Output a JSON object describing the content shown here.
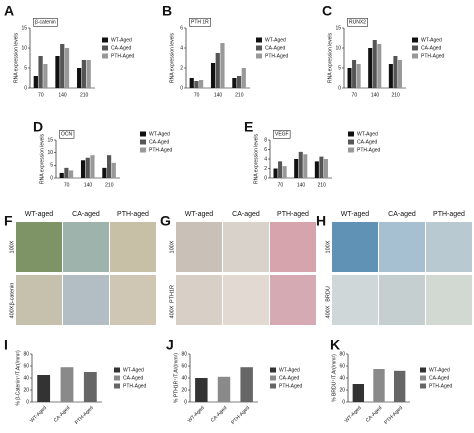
{
  "chart_data": [
    {
      "type": "grouped-bar",
      "panel": "A",
      "title": "β-catenin",
      "y_label": "RNA expression levels",
      "categories": [
        "70",
        "140",
        "210"
      ],
      "series": [
        {
          "name": "WT-Aged",
          "color": "#111111",
          "values": [
            3,
            8,
            5
          ]
        },
        {
          "name": "CA-Aged",
          "color": "#555555",
          "values": [
            8,
            11,
            7
          ]
        },
        {
          "name": "PTH-Aged",
          "color": "#999999",
          "values": [
            6,
            10,
            7
          ]
        }
      ],
      "ylim": [
        0,
        15
      ],
      "yticks": [
        0,
        5,
        10,
        15
      ]
    },
    {
      "type": "grouped-bar",
      "panel": "B",
      "title": "PTH 1R",
      "y_label": "RNA expression levels",
      "categories": [
        "70",
        "140",
        "210"
      ],
      "series": [
        {
          "name": "WT-Aged",
          "color": "#111111",
          "values": [
            1,
            2.5,
            1
          ]
        },
        {
          "name": "CA-Aged",
          "color": "#555555",
          "values": [
            0.7,
            3.5,
            1.2
          ]
        },
        {
          "name": "PTH-Aged",
          "color": "#999999",
          "values": [
            0.8,
            4.5,
            2
          ]
        }
      ],
      "ylim": [
        0,
        6
      ],
      "yticks": [
        0,
        2,
        4,
        6
      ]
    },
    {
      "type": "grouped-bar",
      "panel": "C",
      "title": "RUNX2",
      "y_label": "RNA expression levels",
      "categories": [
        "70",
        "140",
        "210"
      ],
      "series": [
        {
          "name": "WT-Aged",
          "color": "#111111",
          "values": [
            5,
            10,
            6
          ]
        },
        {
          "name": "CA-Aged",
          "color": "#555555",
          "values": [
            7,
            12,
            8
          ]
        },
        {
          "name": "PTH-Aged",
          "color": "#999999",
          "values": [
            6,
            11,
            7
          ]
        }
      ],
      "ylim": [
        0,
        15
      ],
      "yticks": [
        0,
        5,
        10,
        15
      ]
    },
    {
      "type": "grouped-bar",
      "panel": "D",
      "title": "OCN",
      "y_label": "RNA expression levels",
      "categories": [
        "70",
        "140",
        "210"
      ],
      "series": [
        {
          "name": "WT-Aged",
          "color": "#111111",
          "values": [
            2,
            7,
            4
          ]
        },
        {
          "name": "CA-Aged",
          "color": "#555555",
          "values": [
            4,
            8,
            9
          ]
        },
        {
          "name": "PTH-Aged",
          "color": "#999999",
          "values": [
            3,
            9,
            6
          ]
        }
      ],
      "ylim": [
        0,
        15
      ],
      "yticks": [
        0,
        5,
        10,
        15
      ]
    },
    {
      "type": "grouped-bar",
      "panel": "E",
      "title": "VEGF",
      "y_label": "RNA expression levels",
      "categories": [
        "70",
        "140",
        "210"
      ],
      "series": [
        {
          "name": "WT-Aged",
          "color": "#111111",
          "values": [
            2,
            4,
            3.5
          ]
        },
        {
          "name": "CA-Aged",
          "color": "#555555",
          "values": [
            3.5,
            5.5,
            4.5
          ]
        },
        {
          "name": "PTH-Aged",
          "color": "#999999",
          "values": [
            2.5,
            5,
            4
          ]
        }
      ],
      "ylim": [
        0,
        8
      ],
      "yticks": [
        0,
        2,
        4,
        6,
        8
      ]
    },
    {
      "type": "bar",
      "panel": "I",
      "y_label": "% β-Catenin⁺/T.Ar(/mm²)",
      "categories": [
        "WT-Aged",
        "CA-Aged",
        "PTH-Aged"
      ],
      "values": [
        45,
        58,
        50
      ],
      "colors": [
        "#333333",
        "#8a8a8a",
        "#666666"
      ],
      "legend": [
        "WT-Aged",
        "CA-Aged",
        "PTH-Aged"
      ],
      "ylim": [
        0,
        80
      ],
      "yticks": [
        0,
        20,
        40,
        60,
        80
      ]
    },
    {
      "type": "bar",
      "panel": "J",
      "y_label": "% PTH1R⁺/T.Ar(/mm²)",
      "categories": [
        "WT-Aged",
        "CA-Aged",
        "PTH-Aged"
      ],
      "values": [
        40,
        42,
        58
      ],
      "colors": [
        "#333333",
        "#8a8a8a",
        "#666666"
      ],
      "legend": [
        "WT-Aged",
        "CA-Aged",
        "PTH-Aged"
      ],
      "ylim": [
        0,
        80
      ],
      "yticks": [
        0,
        20,
        40,
        60,
        80
      ]
    },
    {
      "type": "bar",
      "panel": "K",
      "y_label": "% BRDU⁺/T.Ar(/mm²)",
      "categories": [
        "WT-Aged",
        "CA-Aged",
        "PTH-Aged"
      ],
      "values": [
        30,
        55,
        52
      ],
      "colors": [
        "#333333",
        "#8a8a8a",
        "#666666"
      ],
      "legend": [
        "WT-Aged",
        "CA-Aged",
        "PTH-Aged"
      ],
      "ylim": [
        0,
        80
      ],
      "yticks": [
        0,
        20,
        40,
        60,
        80
      ]
    }
  ],
  "image_panels": [
    {
      "panel": "F",
      "columns": [
        "WT-aged",
        "CA-aged",
        "PTH-aged"
      ],
      "rows": [
        "100X",
        "400X"
      ],
      "stain": "β-catenin"
    },
    {
      "panel": "G",
      "columns": [
        "WT-aged",
        "CA-aged",
        "PTH-aged"
      ],
      "rows": [
        "100X",
        "400X"
      ],
      "stain": "PTH1R"
    },
    {
      "panel": "H",
      "columns": [
        "WT-aged",
        "CA-aged",
        "PTH-aged"
      ],
      "rows": [
        "100X",
        "400X"
      ],
      "stain": "BRDU"
    }
  ]
}
